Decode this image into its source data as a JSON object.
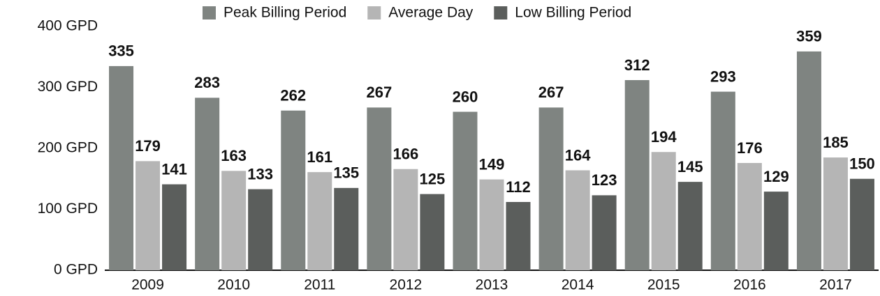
{
  "chart_data": {
    "type": "bar",
    "categories": [
      "2009",
      "2010",
      "2011",
      "2012",
      "2013",
      "2014",
      "2015",
      "2016",
      "2017"
    ],
    "series": [
      {
        "name": "Peak Billing Period",
        "color": "#7f8481",
        "values": [
          335,
          283,
          262,
          267,
          260,
          267,
          312,
          293,
          359
        ]
      },
      {
        "name": "Average Day",
        "color": "#b5b5b5",
        "values": [
          179,
          163,
          161,
          166,
          149,
          164,
          194,
          176,
          185
        ]
      },
      {
        "name": "Low Billing Period",
        "color": "#5b5e5c",
        "values": [
          141,
          133,
          135,
          125,
          112,
          123,
          145,
          129,
          150
        ]
      }
    ],
    "ylim": [
      0,
      400
    ],
    "yticks": [
      {
        "value": 0,
        "label": "0 GPD"
      },
      {
        "value": 100,
        "label": "100 GPD"
      },
      {
        "value": 200,
        "label": "200 GPD"
      },
      {
        "value": 300,
        "label": "300 GPD"
      },
      {
        "value": 400,
        "label": "400 GPD"
      }
    ],
    "grid": false,
    "legend": "top"
  }
}
